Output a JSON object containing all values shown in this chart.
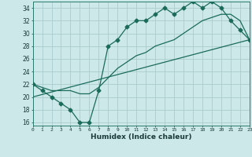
{
  "xlabel": "Humidex (Indice chaleur)",
  "bg_color": "#cce8e8",
  "grid_color": "#aacccc",
  "line_color": "#1a6b5a",
  "xlim": [
    0,
    23
  ],
  "ylim": [
    15.5,
    35
  ],
  "xticks": [
    0,
    1,
    2,
    3,
    4,
    5,
    6,
    7,
    8,
    9,
    10,
    11,
    12,
    13,
    14,
    15,
    16,
    17,
    18,
    19,
    20,
    21,
    22,
    23
  ],
  "yticks": [
    16,
    18,
    20,
    22,
    24,
    26,
    28,
    30,
    32,
    34
  ],
  "line1_x": [
    0,
    1,
    2,
    3,
    4,
    5,
    6,
    7,
    8,
    9,
    10,
    11,
    12,
    13,
    14,
    15,
    16,
    17,
    18,
    19,
    20,
    21,
    22,
    23
  ],
  "line1_y": [
    22,
    21,
    20,
    19,
    18,
    16,
    16,
    21,
    28,
    29,
    31,
    32,
    32,
    33,
    34,
    33,
    34,
    35,
    34,
    35,
    34,
    32,
    30.5,
    29
  ],
  "line2_x": [
    0,
    1,
    2,
    3,
    4,
    5,
    6,
    7,
    8,
    9,
    10,
    11,
    12,
    13,
    14,
    15,
    16,
    17,
    18,
    19,
    20,
    21,
    22,
    23
  ],
  "line2_y": [
    22,
    21.5,
    21,
    21,
    21,
    20.5,
    20.5,
    21.5,
    23,
    24.5,
    25.5,
    26.5,
    27,
    28,
    28.5,
    29,
    30,
    31,
    32,
    32.5,
    33,
    33,
    32,
    29
  ],
  "line3_x": [
    0,
    23
  ],
  "line3_y": [
    20,
    29
  ]
}
